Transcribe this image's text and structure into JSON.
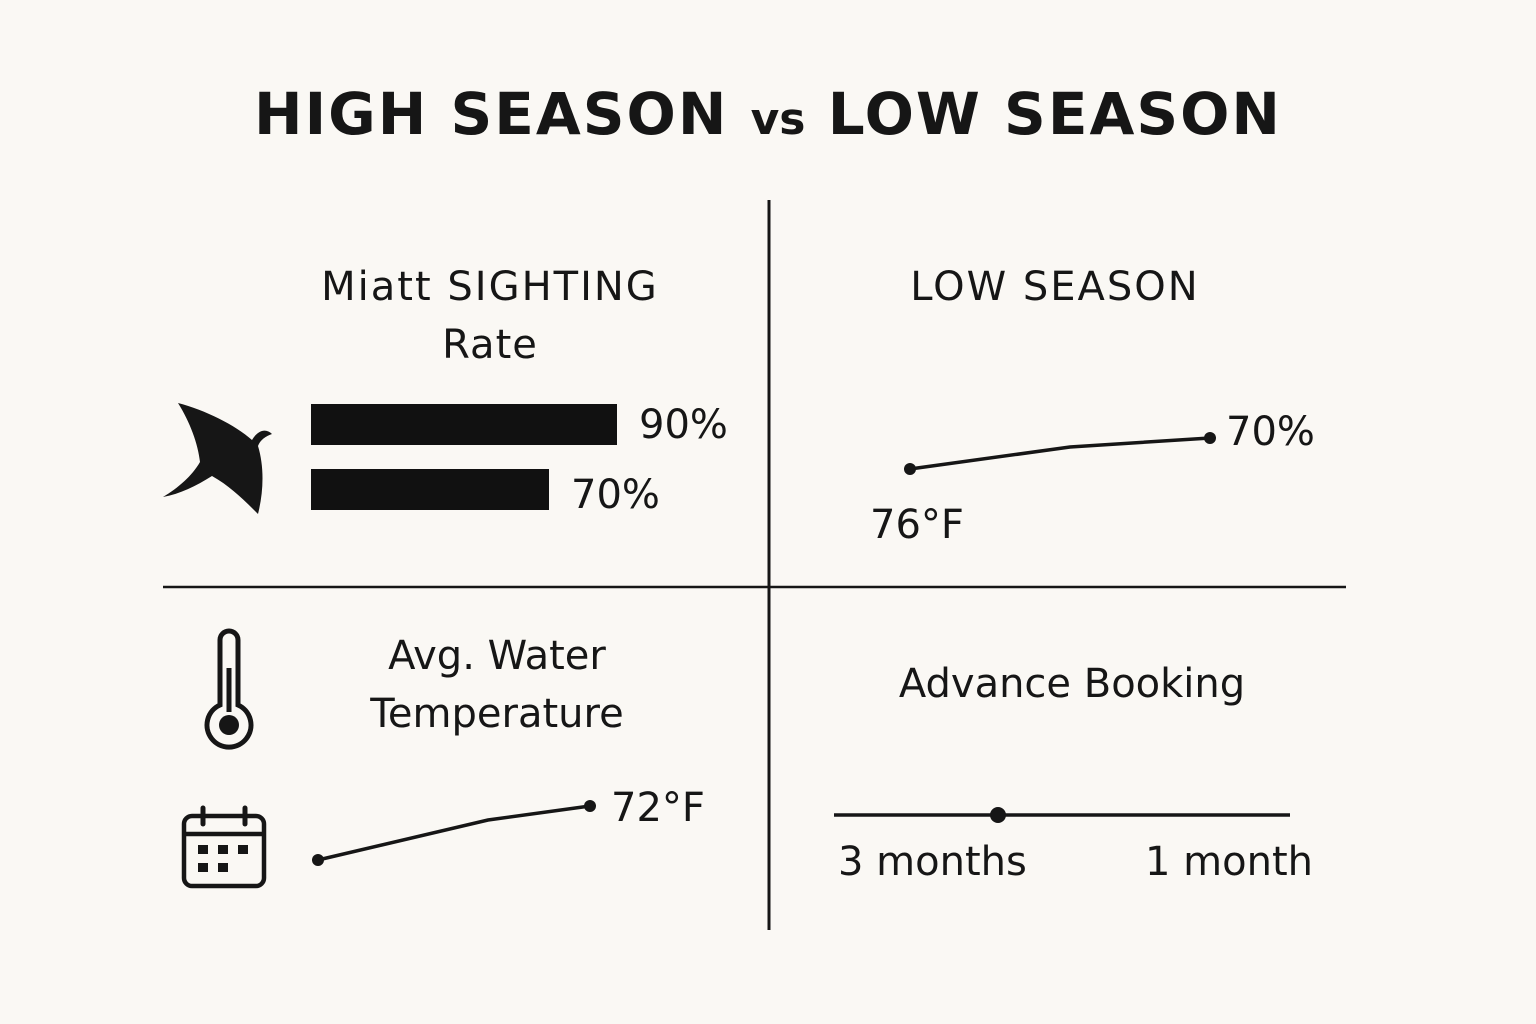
{
  "header": {
    "title_part1": "HIGH SEASON",
    "title_vs": "vs",
    "title_part2": "LOW SEASON"
  },
  "sighting_panel": {
    "heading_line1": "Miatt SIGHTING",
    "heading_line2": "Rate",
    "icon": "manta-ray-icon",
    "bars": [
      {
        "label": "90%",
        "value": 90
      },
      {
        "label": "70%",
        "value": 70
      }
    ]
  },
  "low_season_panel": {
    "heading": "LOW SEASON",
    "start_label": "76°F",
    "end_label": "70%"
  },
  "water_temp_panel": {
    "heading_line1": "Avg. Water",
    "heading_line2": "Temperature",
    "icons": [
      "thermometer-icon",
      "calendar-icon"
    ],
    "end_label": "72°F"
  },
  "booking_panel": {
    "heading": "Advance Booking",
    "left_label": "3 months",
    "right_label": "1 month"
  },
  "colors": {
    "background": "#faf8f4",
    "ink": "#161616"
  }
}
